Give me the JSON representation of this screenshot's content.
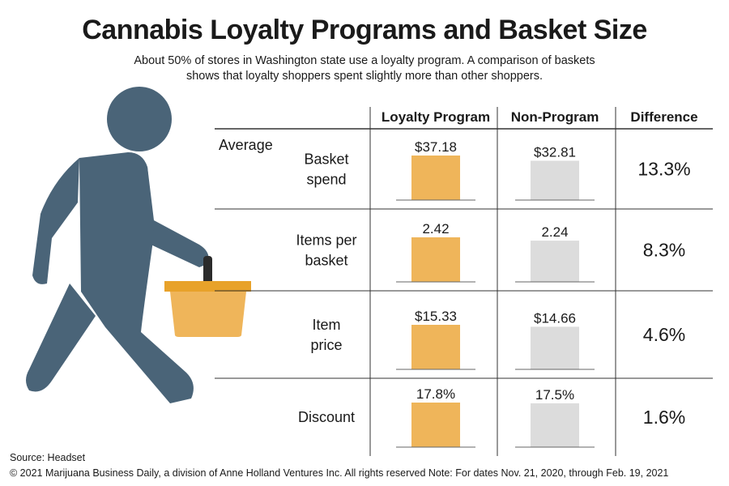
{
  "title": "Cannabis Loyalty Programs and Basket Size",
  "subtitle": "About 50% of stores in Washington state use a loyalty program. A comparison of baskets shows that loyalty shoppers spent slightly more than other shoppers.",
  "source": "Source: Headset",
  "copyright": "© 2021 Marijuana Business Daily, a division of Anne Holland Ventures Inc. All rights reserved  Note: For dates Nov. 21, 2020, through Feb. 19, 2021",
  "colors": {
    "loyalty": "#efb55a",
    "non_program": "#dcdcdc",
    "figure": "#4a6478",
    "basket": "#efb55a",
    "basket_rim": "#e8a22a"
  },
  "icon": "person-carrying-basket-icon",
  "chart_data": {
    "type": "bar",
    "columns": [
      "Loyalty Program",
      "Non-Program",
      "Difference"
    ],
    "group_label": "Average",
    "categories": [
      {
        "label": "Basket spend",
        "loyalty": 37.18,
        "non_program": 32.81,
        "loyalty_text": "$37.18",
        "non_program_text": "$32.81",
        "difference": "13.3%"
      },
      {
        "label": "Items per basket",
        "loyalty": 2.42,
        "non_program": 2.24,
        "loyalty_text": "2.42",
        "non_program_text": "2.24",
        "difference": "8.3%"
      },
      {
        "label": "Item price",
        "loyalty": 15.33,
        "non_program": 14.66,
        "loyalty_text": "$15.33",
        "non_program_text": "$14.66",
        "difference": "4.6%"
      },
      {
        "label": "Discount",
        "loyalty": 17.8,
        "non_program": 17.5,
        "loyalty_text": "17.8%",
        "non_program_text": "17.5%",
        "difference": "1.6%"
      }
    ]
  }
}
